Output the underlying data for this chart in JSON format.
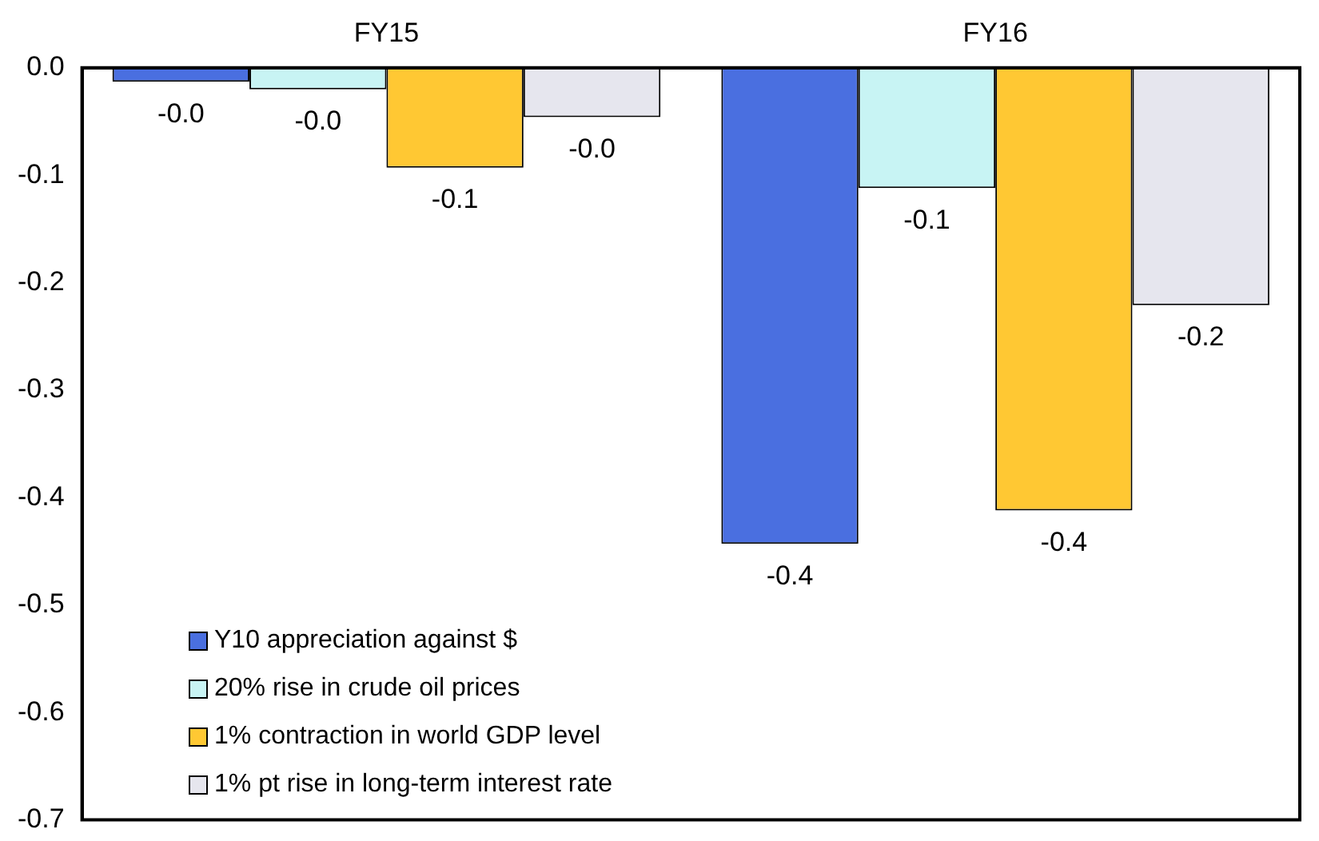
{
  "chart_data": {
    "type": "bar",
    "categories": [
      "FY15",
      "FY16"
    ],
    "series": [
      {
        "name": "Y10 appreciation against $",
        "color": "#4a6fe0",
        "values": [
          -0.013,
          -0.443
        ],
        "value_labels": [
          "-0.0",
          "-0.4"
        ]
      },
      {
        "name": "20% rise in crude oil prices",
        "color": "#c8f4f4",
        "values": [
          -0.02,
          -0.112
        ],
        "value_labels": [
          "-0.0",
          "-0.1"
        ]
      },
      {
        "name": "1% contraction in world GDP level",
        "color": "#ffc833",
        "values": [
          -0.093,
          -0.412
        ],
        "value_labels": [
          "-0.1",
          "-0.4"
        ]
      },
      {
        "name": "1% pt rise in long-term interest rate",
        "color": "#e6e6ee",
        "values": [
          -0.046,
          -0.221
        ],
        "value_labels": [
          "-0.0",
          "-0.2"
        ]
      }
    ],
    "ylim": [
      -0.7,
      0
    ],
    "yticks": [
      {
        "value": 0,
        "label": "0.0"
      },
      {
        "value": -0.1,
        "label": "-0.1"
      },
      {
        "value": -0.2,
        "label": "-0.2"
      },
      {
        "value": -0.3,
        "label": "-0.3"
      },
      {
        "value": -0.4,
        "label": "-0.4"
      },
      {
        "value": -0.5,
        "label": "-0.5"
      },
      {
        "value": -0.6,
        "label": "-0.6"
      },
      {
        "value": -0.7,
        "label": "-0.7"
      }
    ],
    "grid": false,
    "legend": "bottom left"
  }
}
